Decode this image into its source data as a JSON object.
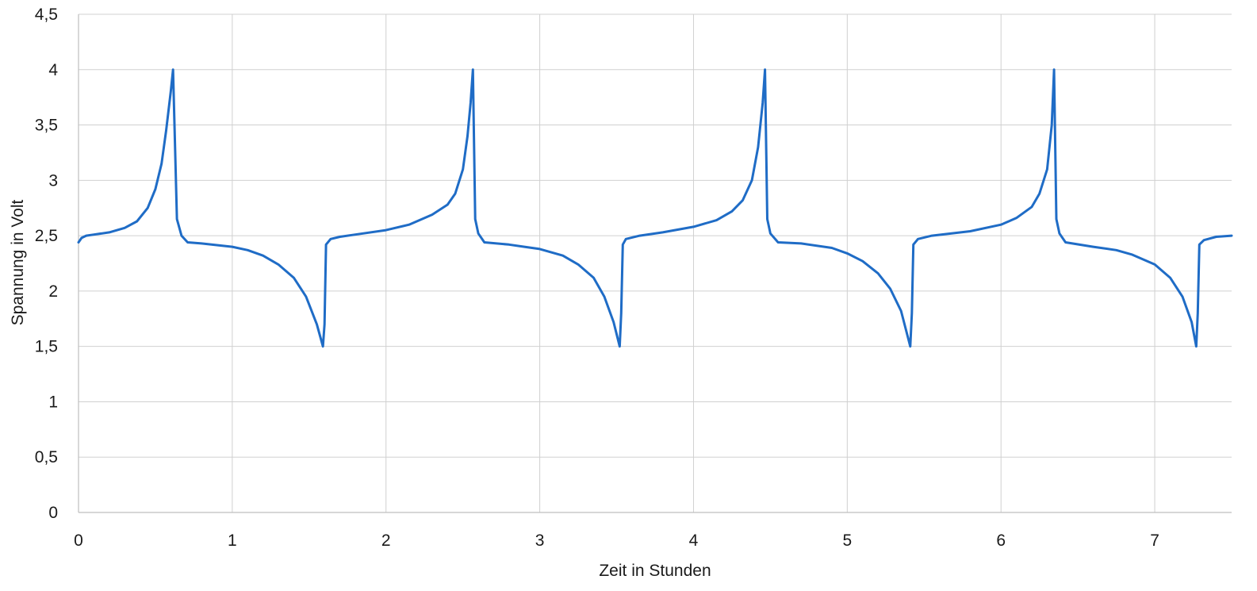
{
  "chart_data": {
    "type": "line",
    "title": "",
    "xlabel": "Zeit in Stunden",
    "ylabel": "Spannung in Volt",
    "xlim": [
      0,
      7.5
    ],
    "ylim": [
      0,
      4.5
    ],
    "x_ticks": [
      0,
      1,
      2,
      3,
      4,
      5,
      6,
      7
    ],
    "x_tick_labels": [
      "0",
      "1",
      "2",
      "3",
      "4",
      "5",
      "6",
      "7"
    ],
    "y_ticks": [
      0,
      0.5,
      1,
      1.5,
      2,
      2.5,
      3,
      3.5,
      4,
      4.5
    ],
    "y_tick_labels": [
      "0",
      "0,5",
      "1",
      "1,5",
      "2",
      "2,5",
      "3",
      "3,5",
      "4",
      "4,5"
    ],
    "grid": true,
    "legend": "none",
    "series": [
      {
        "color": "#1f6cc6",
        "points": [
          [
            0.0,
            2.44
          ],
          [
            0.02,
            2.48
          ],
          [
            0.05,
            2.5
          ],
          [
            0.1,
            2.51
          ],
          [
            0.2,
            2.53
          ],
          [
            0.3,
            2.57
          ],
          [
            0.38,
            2.63
          ],
          [
            0.45,
            2.75
          ],
          [
            0.5,
            2.92
          ],
          [
            0.54,
            3.15
          ],
          [
            0.57,
            3.45
          ],
          [
            0.6,
            3.8
          ],
          [
            0.615,
            4.0
          ],
          [
            0.64,
            2.65
          ],
          [
            0.67,
            2.5
          ],
          [
            0.71,
            2.44
          ],
          [
            0.8,
            2.43
          ],
          [
            1.0,
            2.4
          ],
          [
            1.1,
            2.37
          ],
          [
            1.2,
            2.32
          ],
          [
            1.3,
            2.24
          ],
          [
            1.4,
            2.12
          ],
          [
            1.48,
            1.95
          ],
          [
            1.55,
            1.7
          ],
          [
            1.59,
            1.5
          ],
          [
            1.6,
            1.7
          ],
          [
            1.61,
            2.42
          ],
          [
            1.64,
            2.47
          ],
          [
            1.7,
            2.49
          ],
          [
            1.8,
            2.51
          ],
          [
            2.0,
            2.55
          ],
          [
            2.15,
            2.6
          ],
          [
            2.3,
            2.69
          ],
          [
            2.4,
            2.78
          ],
          [
            2.45,
            2.88
          ],
          [
            2.5,
            3.1
          ],
          [
            2.53,
            3.4
          ],
          [
            2.55,
            3.7
          ],
          [
            2.565,
            4.0
          ],
          [
            2.58,
            2.65
          ],
          [
            2.6,
            2.52
          ],
          [
            2.64,
            2.44
          ],
          [
            2.8,
            2.42
          ],
          [
            2.9,
            2.4
          ],
          [
            3.0,
            2.38
          ],
          [
            3.15,
            2.32
          ],
          [
            3.25,
            2.24
          ],
          [
            3.35,
            2.12
          ],
          [
            3.42,
            1.95
          ],
          [
            3.48,
            1.72
          ],
          [
            3.52,
            1.5
          ],
          [
            3.53,
            1.8
          ],
          [
            3.54,
            2.42
          ],
          [
            3.56,
            2.47
          ],
          [
            3.65,
            2.5
          ],
          [
            3.8,
            2.53
          ],
          [
            4.0,
            2.58
          ],
          [
            4.15,
            2.64
          ],
          [
            4.25,
            2.72
          ],
          [
            4.32,
            2.82
          ],
          [
            4.38,
            3.0
          ],
          [
            4.42,
            3.3
          ],
          [
            4.45,
            3.7
          ],
          [
            4.465,
            4.0
          ],
          [
            4.48,
            2.65
          ],
          [
            4.5,
            2.52
          ],
          [
            4.55,
            2.44
          ],
          [
            4.7,
            2.43
          ],
          [
            4.9,
            2.39
          ],
          [
            5.0,
            2.34
          ],
          [
            5.1,
            2.27
          ],
          [
            5.2,
            2.16
          ],
          [
            5.28,
            2.02
          ],
          [
            5.35,
            1.82
          ],
          [
            5.41,
            1.5
          ],
          [
            5.42,
            1.8
          ],
          [
            5.43,
            2.42
          ],
          [
            5.46,
            2.47
          ],
          [
            5.55,
            2.5
          ],
          [
            5.8,
            2.54
          ],
          [
            6.0,
            2.6
          ],
          [
            6.1,
            2.66
          ],
          [
            6.2,
            2.76
          ],
          [
            6.25,
            2.88
          ],
          [
            6.3,
            3.1
          ],
          [
            6.33,
            3.5
          ],
          [
            6.345,
            4.0
          ],
          [
            6.36,
            2.65
          ],
          [
            6.38,
            2.52
          ],
          [
            6.42,
            2.44
          ],
          [
            6.6,
            2.4
          ],
          [
            6.75,
            2.37
          ],
          [
            6.85,
            2.33
          ],
          [
            7.0,
            2.24
          ],
          [
            7.1,
            2.12
          ],
          [
            7.18,
            1.95
          ],
          [
            7.24,
            1.72
          ],
          [
            7.27,
            1.5
          ],
          [
            7.28,
            1.8
          ],
          [
            7.29,
            2.42
          ],
          [
            7.32,
            2.46
          ],
          [
            7.4,
            2.49
          ],
          [
            7.5,
            2.5
          ]
        ]
      }
    ]
  }
}
